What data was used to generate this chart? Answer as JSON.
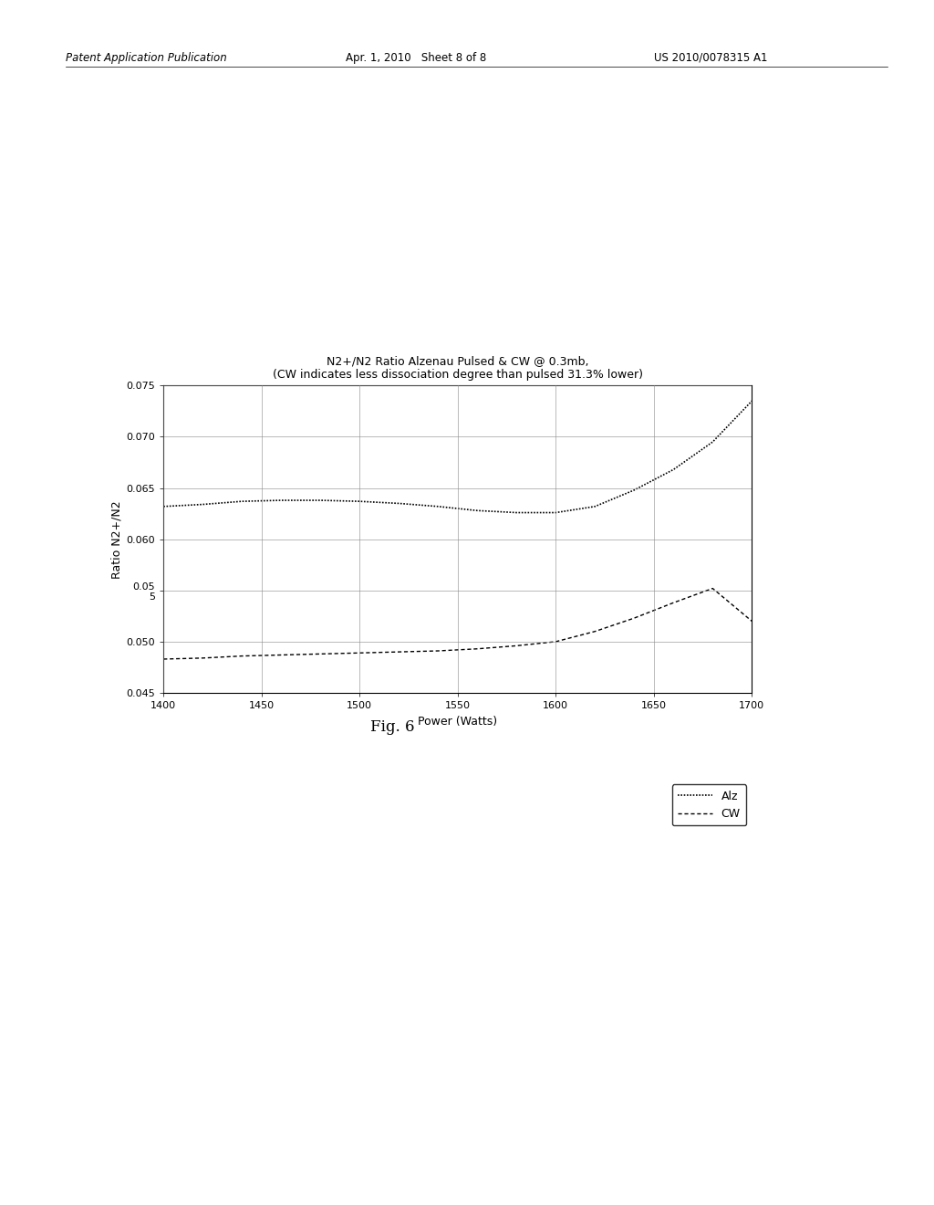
{
  "title_line1": "N2+/N2 Ratio Alzenau Pulsed & CW @ 0.3mb,",
  "title_line2": "(CW indicates less dissociation degree than pulsed 31.3% lower)",
  "xlabel": "Power (Watts)",
  "ylabel": "Ratio N2+/N2",
  "xlim": [
    1400,
    1700
  ],
  "ylim": [
    0.045,
    0.075
  ],
  "yticks": [
    0.075,
    0.07,
    0.065,
    0.06,
    0.055,
    0.05,
    0.045
  ],
  "ytick_labels": [
    "0.075",
    "0.070",
    "0.065",
    "0.060",
    "0.05\n5",
    "0.050",
    "0.045"
  ],
  "xticks": [
    1400,
    1450,
    1500,
    1550,
    1600,
    1650,
    1700
  ],
  "alz_x": [
    1400,
    1420,
    1440,
    1460,
    1480,
    1500,
    1520,
    1540,
    1560,
    1580,
    1600,
    1620,
    1640,
    1660,
    1680,
    1700
  ],
  "alz_y": [
    0.0632,
    0.0634,
    0.0637,
    0.0638,
    0.0638,
    0.0637,
    0.0635,
    0.0632,
    0.0628,
    0.0626,
    0.0626,
    0.0632,
    0.0648,
    0.0668,
    0.0695,
    0.0735
  ],
  "cw_x": [
    1400,
    1420,
    1440,
    1460,
    1480,
    1500,
    1520,
    1540,
    1560,
    1580,
    1600,
    1620,
    1640,
    1660,
    1680,
    1700
  ],
  "cw_y": [
    0.0483,
    0.0484,
    0.0486,
    0.0487,
    0.0488,
    0.0489,
    0.049,
    0.0491,
    0.0493,
    0.0496,
    0.05,
    0.051,
    0.0523,
    0.0538,
    0.0552,
    0.052
  ],
  "background_color": "#ffffff",
  "header_left": "Patent Application Publication",
  "header_center": "Apr. 1, 2010   Sheet 8 of 8",
  "header_right": "US 2010/0078315 A1",
  "fig_label": "Fig. 6",
  "legend_labels": [
    "Alz",
    "CW"
  ]
}
